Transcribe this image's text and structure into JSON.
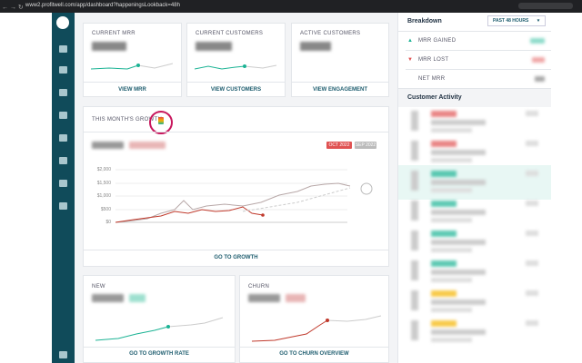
{
  "browser": {
    "url": "www2.profitwell.com/app/dashboard?happeningsLookback=48h"
  },
  "cards": [
    {
      "title": "CURRENT MRR",
      "link": "VIEW MRR"
    },
    {
      "title": "CURRENT CUSTOMERS",
      "link": "VIEW CUSTOMERS"
    },
    {
      "title": "ACTIVE CUSTOMERS",
      "link": "VIEW ENGAGEMENT"
    }
  ],
  "growth": {
    "title": "THIS MONTH'S GROWTH",
    "legend": [
      "OCT 2022",
      "SEP 2022"
    ],
    "y_labels": [
      "$2,000",
      "$1,500",
      "$1,000",
      "$500",
      "$0"
    ],
    "link": "GO TO GROWTH"
  },
  "mini_charts": [
    {
      "title": "NEW",
      "link": "GO TO GROWTH RATE"
    },
    {
      "title": "CHURN",
      "link": "GO TO CHURN OVERVIEW"
    }
  ],
  "breakdown": {
    "title": "Breakdown",
    "period": "PAST 48 HOURS",
    "rows": [
      "MRR GAINED",
      "MRR LOST",
      "NET MRR"
    ]
  },
  "activity": {
    "title": "Customer Activity"
  }
}
